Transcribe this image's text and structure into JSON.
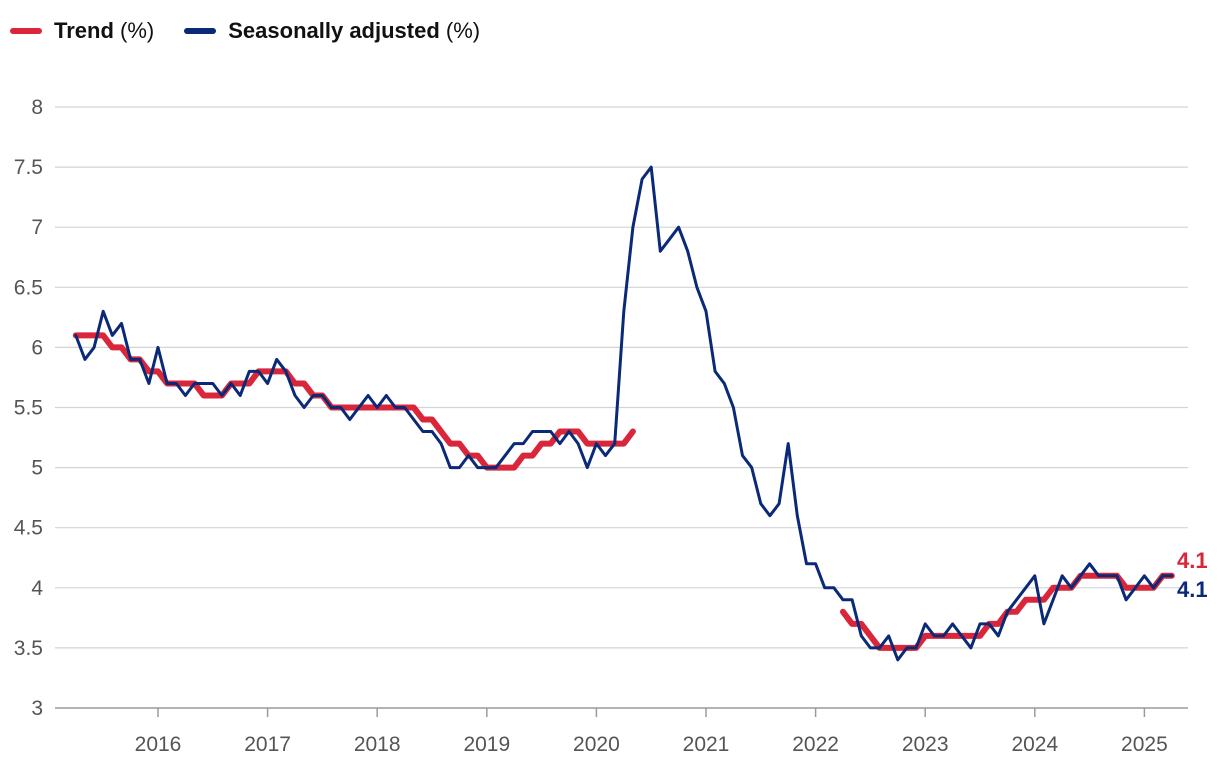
{
  "legend": [
    {
      "name": "Trend",
      "unit": "(%)",
      "color": "#d9263a"
    },
    {
      "name": "Seasonally adjusted",
      "unit": "(%)",
      "color": "#0a2a78"
    }
  ],
  "end_labels": {
    "trend": "4.1",
    "seasonally_adjusted": "4.1"
  },
  "chart_data": {
    "type": "line",
    "title": "",
    "xlabel": "",
    "ylabel": "",
    "ylim": [
      3,
      8
    ],
    "xlim": [
      2015.0,
      2025.4
    ],
    "y_ticks": [
      3,
      3.5,
      4,
      4.5,
      5,
      5.5,
      6,
      6.5,
      7,
      7.5,
      8
    ],
    "y_tick_labels": [
      "3",
      "3.5",
      "4",
      "4.5",
      "5",
      "5.5",
      "6",
      "6.5",
      "7",
      "7.5",
      "8"
    ],
    "x_ticks": [
      2016,
      2017,
      2018,
      2019,
      2020,
      2021,
      2022,
      2023,
      2024,
      2025
    ],
    "x_tick_labels": [
      "2016",
      "2017",
      "2018",
      "2019",
      "2020",
      "2021",
      "2022",
      "2023",
      "2024",
      "2025"
    ],
    "grid": "horizontal",
    "legend_position": "top-left",
    "series": [
      {
        "name": "Trend (%)",
        "color": "#d9263a",
        "segments": [
          {
            "start": "2015-04",
            "values": [
              6.1,
              6.1,
              6.1,
              6.1,
              6.0,
              6.0,
              5.9,
              5.9,
              5.8,
              5.8,
              5.7,
              5.7,
              5.7,
              5.7,
              5.6,
              5.6,
              5.6,
              5.7,
              5.7,
              5.7,
              5.8,
              5.8,
              5.8,
              5.8,
              5.7,
              5.7,
              5.6,
              5.6,
              5.5,
              5.5,
              5.5,
              5.5,
              5.5,
              5.5,
              5.5,
              5.5,
              5.5,
              5.5,
              5.4,
              5.4,
              5.3,
              5.2,
              5.2,
              5.1,
              5.1,
              5.0,
              5.0,
              5.0,
              5.0,
              5.1,
              5.1,
              5.2,
              5.2,
              5.3,
              5.3,
              5.3,
              5.2,
              5.2,
              5.2,
              5.2,
              5.2,
              5.3
            ]
          },
          {
            "start": "2022-04",
            "values": [
              3.8,
              3.7,
              3.7,
              3.6,
              3.5,
              3.5,
              3.5,
              3.5,
              3.5,
              3.6,
              3.6,
              3.6,
              3.6,
              3.6,
              3.6,
              3.6,
              3.7,
              3.7,
              3.8,
              3.8,
              3.9,
              3.9,
              3.9,
              4.0,
              4.0,
              4.0,
              4.1,
              4.1,
              4.1,
              4.1,
              4.1,
              4.0,
              4.0,
              4.0,
              4.0,
              4.1,
              4.1
            ]
          }
        ]
      },
      {
        "name": "Seasonally adjusted (%)",
        "color": "#0a2a78",
        "segments": [
          {
            "start": "2015-04",
            "values": [
              6.1,
              5.9,
              6.0,
              6.3,
              6.1,
              6.2,
              5.9,
              5.9,
              5.7,
              6.0,
              5.7,
              5.7,
              5.6,
              5.7,
              5.7,
              5.7,
              5.6,
              5.7,
              5.6,
              5.8,
              5.8,
              5.7,
              5.9,
              5.8,
              5.6,
              5.5,
              5.6,
              5.6,
              5.5,
              5.5,
              5.4,
              5.5,
              5.6,
              5.5,
              5.6,
              5.5,
              5.5,
              5.4,
              5.3,
              5.3,
              5.2,
              5.0,
              5.0,
              5.1,
              5.0,
              5.0,
              5.0,
              5.1,
              5.2,
              5.2,
              5.3,
              5.3,
              5.3,
              5.2,
              5.3,
              5.2,
              5.0,
              5.2,
              5.1,
              5.2,
              6.3,
              7.0,
              7.4,
              7.5,
              6.8,
              6.9,
              7.0,
              6.8,
              6.5,
              6.3,
              5.8,
              5.7,
              5.5,
              5.1,
              5.0,
              4.7,
              4.6,
              4.7,
              5.2,
              4.6,
              4.2,
              4.2,
              4.0,
              4.0,
              3.9,
              3.9,
              3.6,
              3.5,
              3.5,
              3.6,
              3.4,
              3.5,
              3.5,
              3.7,
              3.6,
              3.6,
              3.7,
              3.6,
              3.5,
              3.7,
              3.7,
              3.6,
              3.8,
              3.9,
              4.0,
              4.1,
              3.7,
              3.9,
              4.1,
              4.0,
              4.1,
              4.2,
              4.1,
              4.1,
              4.1,
              3.9,
              4.0,
              4.1,
              4.0,
              4.1,
              4.1
            ]
          }
        ]
      }
    ]
  }
}
